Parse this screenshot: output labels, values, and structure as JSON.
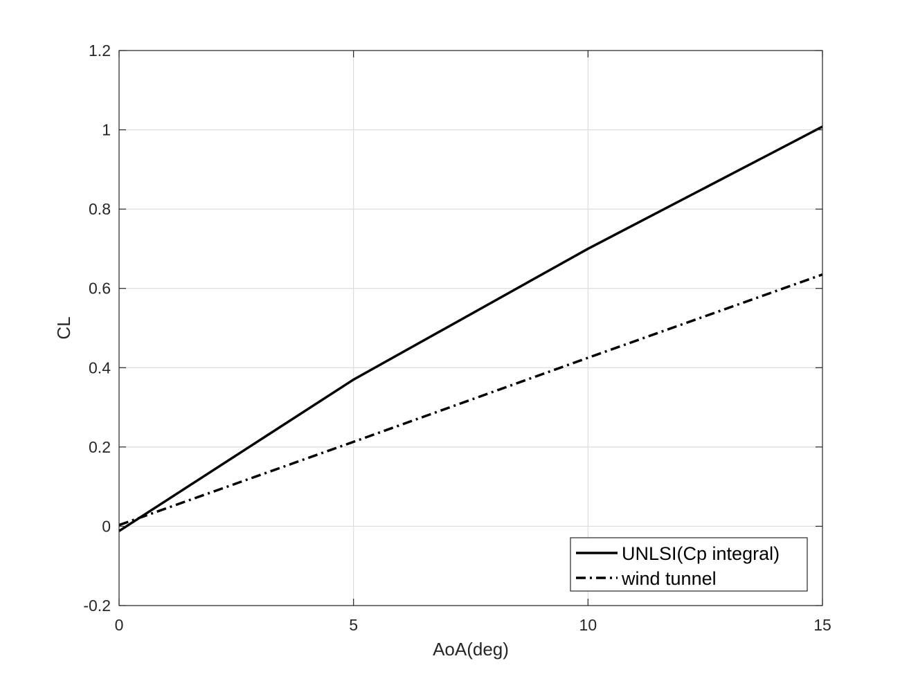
{
  "chart_data": {
    "type": "line",
    "xlabel": "AoA(deg)",
    "ylabel": "CL",
    "xlim": [
      0,
      15
    ],
    "ylim": [
      -0.2,
      1.2
    ],
    "x_ticks": [
      0,
      5,
      10,
      15
    ],
    "y_ticks": [
      -0.2,
      0,
      0.2,
      0.4,
      0.6,
      0.8,
      1,
      1.2
    ],
    "x_tick_labels": [
      "0",
      "5",
      "10",
      "15"
    ],
    "y_tick_labels": [
      "-0.2",
      "0",
      "0.2",
      "0.4",
      "0.6",
      "0.8",
      "1",
      "1.2"
    ],
    "grid": true,
    "legend_position": "bottom-right",
    "series": [
      {
        "name": "UNLSI(Cp integral)",
        "line_style": "solid",
        "color": "#000000",
        "x": [
          0,
          5,
          10,
          15
        ],
        "y": [
          -0.012,
          0.37,
          0.7,
          1.008
        ]
      },
      {
        "name": "wind tunnel",
        "line_style": "dash-dot",
        "color": "#000000",
        "x": [
          0,
          5,
          10,
          15
        ],
        "y": [
          0.003,
          0.213,
          0.425,
          0.635
        ]
      }
    ]
  }
}
